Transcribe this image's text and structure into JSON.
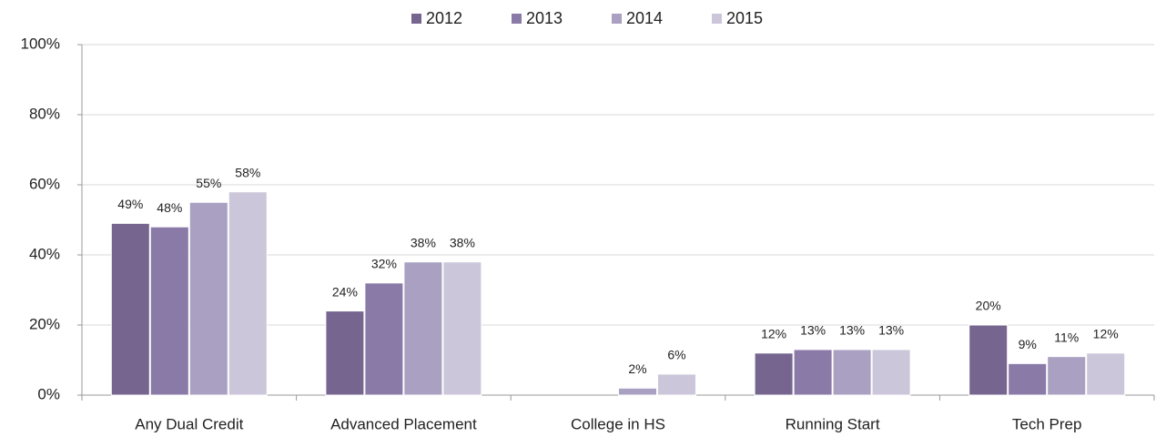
{
  "chart_data": {
    "type": "bar",
    "categories": [
      "Any Dual Credit",
      "Advanced Placement",
      "College in HS",
      "Running Start",
      "Tech Prep"
    ],
    "series": [
      {
        "name": "2012",
        "color": "#76668f",
        "values": [
          49,
          24,
          null,
          12,
          20
        ],
        "value_labels": [
          "49%",
          "24%",
          null,
          "12%",
          "20%"
        ]
      },
      {
        "name": "2013",
        "color": "#8a7aa8",
        "values": [
          48,
          32,
          null,
          13,
          9
        ],
        "value_labels": [
          "48%",
          "32%",
          null,
          "13%",
          "9%"
        ]
      },
      {
        "name": "2014",
        "color": "#a9a0c2",
        "values": [
          55,
          38,
          2,
          13,
          11
        ],
        "value_labels": [
          "55%",
          "38%",
          "2%",
          "13%",
          "11%"
        ]
      },
      {
        "name": "2015",
        "color": "#cbc6d9",
        "values": [
          58,
          38,
          6,
          13,
          12
        ],
        "value_labels": [
          "58%",
          "38%",
          "6%",
          "13%",
          "12%"
        ]
      }
    ],
    "ylim": [
      0,
      100
    ],
    "yticks": [
      {
        "value": 0,
        "label": "0%"
      },
      {
        "value": 20,
        "label": "20%"
      },
      {
        "value": 40,
        "label": "40%"
      },
      {
        "value": 60,
        "label": "60%"
      },
      {
        "value": 80,
        "label": "80%"
      },
      {
        "value": 100,
        "label": "100%"
      }
    ],
    "grid": true,
    "legend": "top"
  }
}
